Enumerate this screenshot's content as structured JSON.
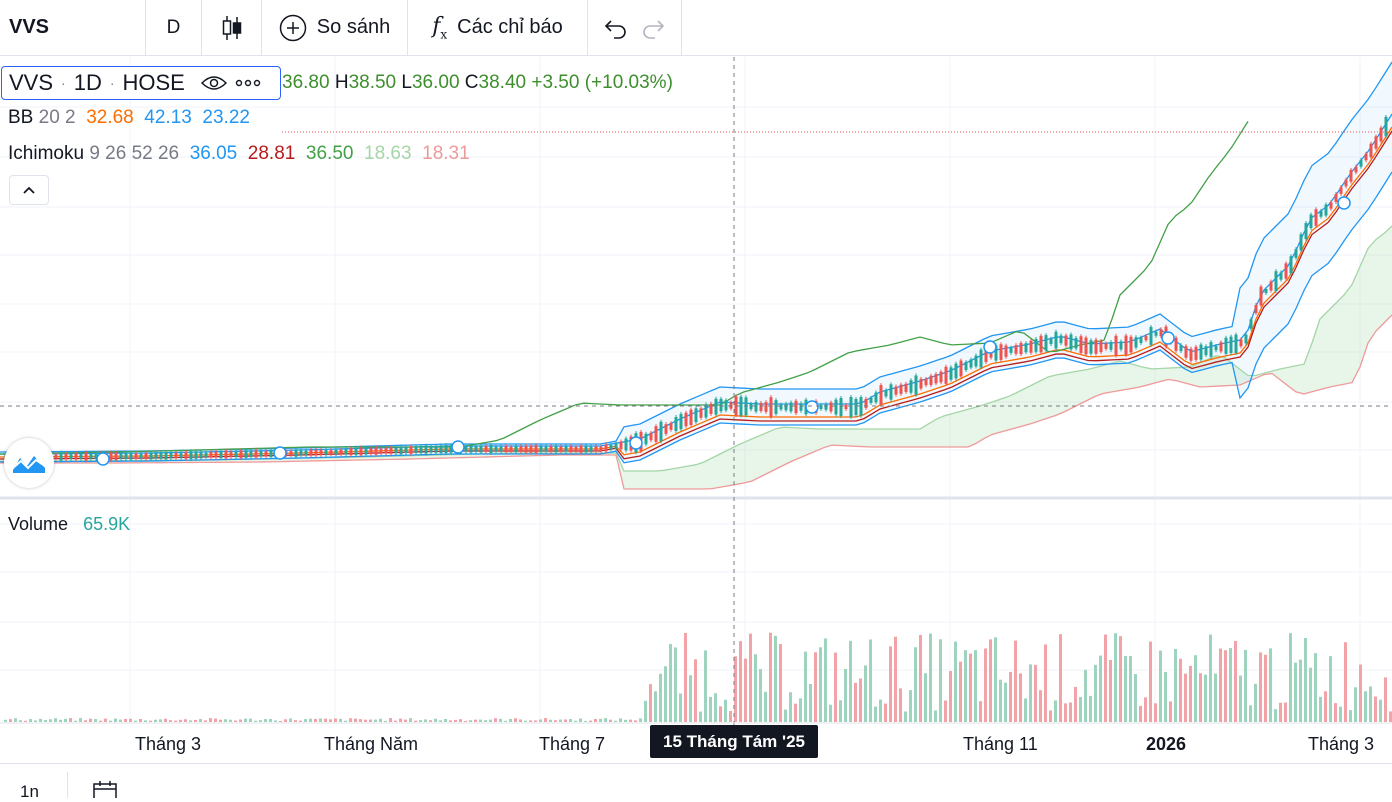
{
  "toolbar": {
    "symbol": "VVS",
    "interval": "D",
    "compare_label": "So sánh",
    "indicators_label": "Các chỉ báo"
  },
  "legend": {
    "symbol": "VVS",
    "interval": "1D",
    "exchange": "HOSE",
    "open_label": "",
    "open": "36.80",
    "high_label": "H",
    "high": "38.50",
    "low_label": "L",
    "low": "36.00",
    "close_label": "C",
    "close": "38.40",
    "change": "+3.50 (+10.03%)"
  },
  "bb": {
    "name": "BB",
    "params": "20 2",
    "basis": "32.68",
    "upper": "42.13",
    "lower": "23.22"
  },
  "ichimoku": {
    "name": "Ichimoku",
    "params": "9 26 52 26",
    "v1": "36.05",
    "v2": "28.81",
    "v3": "36.50",
    "v4": "18.63",
    "v5": "18.31"
  },
  "volume": {
    "name": "Volume",
    "value": "65.9K"
  },
  "x_axis": {
    "labels": [
      "Tháng 3",
      "Tháng Năm",
      "Tháng 7",
      "Tháng 11",
      "2026",
      "Tháng 3"
    ],
    "crosshair_label": "15 Tháng Tám '25"
  },
  "bottom_bar": {
    "range": "1n"
  },
  "colors": {
    "up": "#26a69a",
    "down": "#ef5350",
    "bb_basis": "#ff6d00",
    "bb_band": "#2196f3",
    "ichi_conv": "#2196f3",
    "ichi_base": "#b71c1c",
    "ichi_lag": "#43a047",
    "ichi_span_a": "#a5d6a7",
    "ichi_span_b": "#ef9a9a",
    "volume_up": "#9ed3bd",
    "volume_down": "#f2a3a7"
  }
}
